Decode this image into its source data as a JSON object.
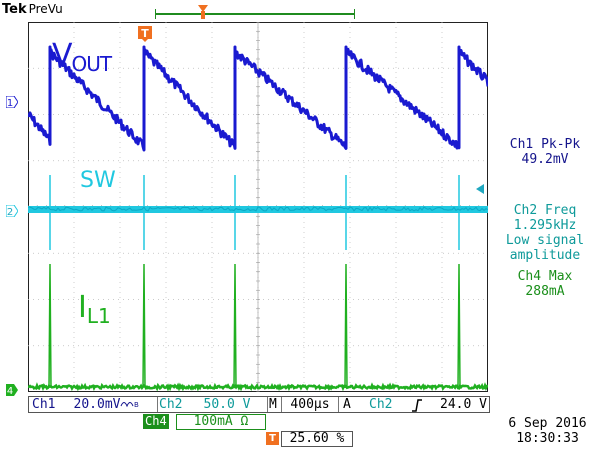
{
  "header": {
    "brand": "Tek",
    "mode": "PreVu"
  },
  "traces": {
    "vout": {
      "main": "V",
      "sub": "OUT",
      "color": "#1a1ad0"
    },
    "sw": {
      "label": "SW",
      "color": "#20c8e0"
    },
    "il": {
      "main": "I",
      "sub": "L1",
      "color": "#20b020"
    }
  },
  "channel_markers": {
    "ch1": "1",
    "ch2": "2",
    "ch4": "4",
    "trigger": "T"
  },
  "measurements": {
    "ch1": {
      "title": "Ch1 Pk-Pk",
      "value": "49.2mV"
    },
    "ch2": {
      "title": "Ch2 Freq",
      "value": "1.295kHz",
      "note1": "Low signal",
      "note2": "amplitude"
    },
    "ch4": {
      "title": "Ch4 Max",
      "value": "288mA"
    }
  },
  "readout": {
    "ch1_label": "Ch1",
    "ch1_scale": "20.0mV",
    "ch2_label": "Ch2",
    "ch2_scale": "50.0 V",
    "timebase_label": "M",
    "timebase": "400µs",
    "trigger_mode": "A",
    "trigger_source": "Ch2",
    "trigger_level": "24.0 V",
    "ch4_label": "Ch4",
    "ch4_scale": "100mA Ω",
    "trigger_position": "25.60 %"
  },
  "footer": {
    "date": "6 Sep  2016",
    "time": "18:30:33"
  },
  "colors": {
    "ch1": "#1a1ad0",
    "ch2": "#20c8e0",
    "ch4": "#20b020",
    "trigger": "#f07020"
  },
  "icons": {
    "trigger_marker": "trigger-marker-icon",
    "slope": "rising-slope-icon"
  }
}
